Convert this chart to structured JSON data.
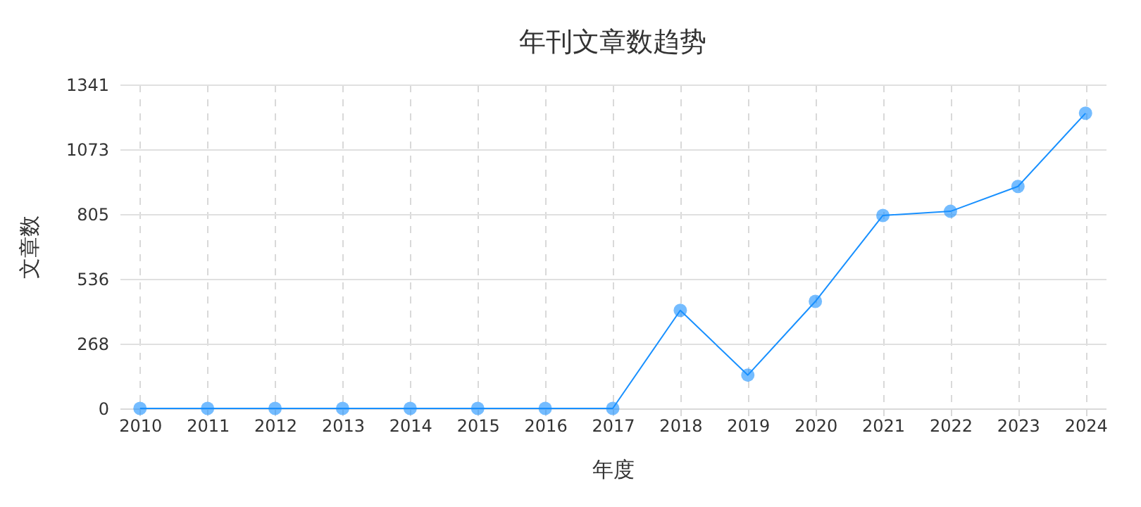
{
  "chart_data": {
    "type": "line",
    "title": "年刊文章数趋势",
    "xlabel": "年度",
    "ylabel": "文章数",
    "categories": [
      "2010",
      "2011",
      "2012",
      "2013",
      "2014",
      "2015",
      "2016",
      "2017",
      "2018",
      "2019",
      "2020",
      "2021",
      "2022",
      "2023",
      "2024"
    ],
    "series": [
      {
        "color": "#1890ff",
        "values": [
          0,
          0,
          0,
          0,
          0,
          0,
          0,
          0,
          406,
          138,
          443,
          799,
          816,
          919,
          1222
        ]
      }
    ],
    "ylim": [
      0,
      1341
    ],
    "yticks": [
      0,
      268,
      536,
      805,
      1073,
      1341
    ],
    "grid": true,
    "marker": "circle",
    "line_style": "solid"
  }
}
